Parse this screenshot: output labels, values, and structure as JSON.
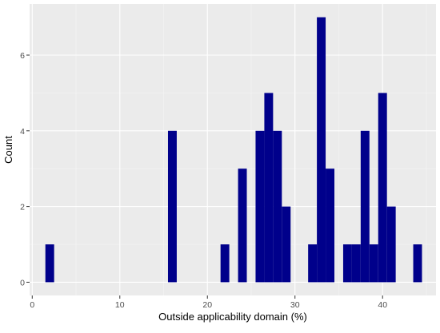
{
  "chart_data": {
    "type": "bar",
    "subtype": "histogram",
    "title": "",
    "xlabel": "Outside applicability domain (%)",
    "ylabel": "Count",
    "xlim": [
      -0.3,
      46.1
    ],
    "ylim": [
      -0.35,
      7.35
    ],
    "x_ticks": [
      0,
      10,
      20,
      30,
      40
    ],
    "y_ticks": [
      0,
      2,
      4,
      6
    ],
    "x_tick_labels": [
      "0",
      "10",
      "20",
      "30",
      "40"
    ],
    "y_tick_labels": [
      "0",
      "2",
      "4",
      "6"
    ],
    "bin_width": 1.0,
    "bins": [
      {
        "x": 2,
        "count": 1
      },
      {
        "x": 16,
        "count": 4
      },
      {
        "x": 22,
        "count": 1
      },
      {
        "x": 24,
        "count": 3
      },
      {
        "x": 26,
        "count": 4
      },
      {
        "x": 27,
        "count": 5
      },
      {
        "x": 28,
        "count": 4
      },
      {
        "x": 29,
        "count": 2
      },
      {
        "x": 32,
        "count": 1
      },
      {
        "x": 33,
        "count": 7
      },
      {
        "x": 34,
        "count": 3
      },
      {
        "x": 36,
        "count": 1
      },
      {
        "x": 37,
        "count": 1
      },
      {
        "x": 38,
        "count": 4
      },
      {
        "x": 39,
        "count": 1
      },
      {
        "x": 40,
        "count": 5
      },
      {
        "x": 41,
        "count": 2
      },
      {
        "x": 44,
        "count": 1
      }
    ],
    "grid": true,
    "legend": "none",
    "colors": {
      "bar": "#00008b",
      "panel": "#ebebeb",
      "grid_major": "#ffffff",
      "grid_minor": "#f5f5f5"
    }
  }
}
